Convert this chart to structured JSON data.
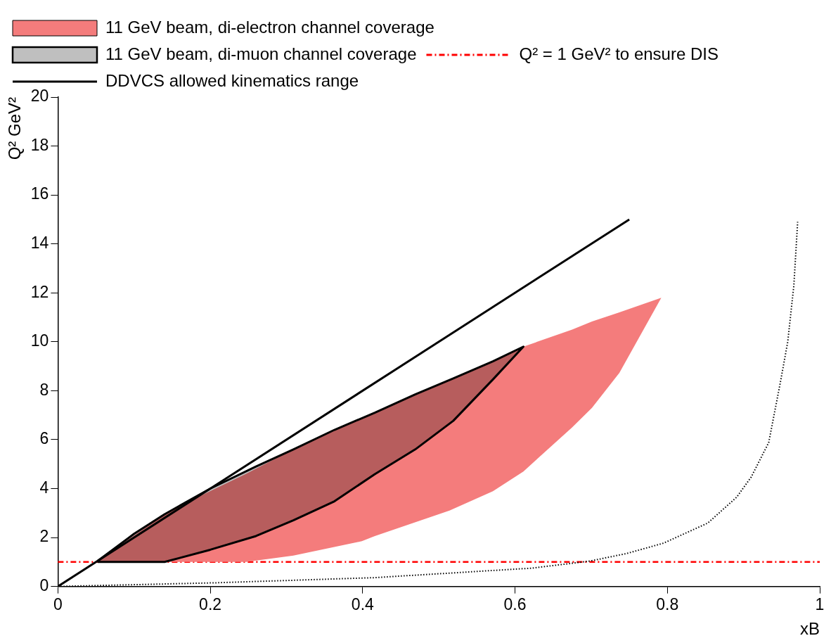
{
  "chart_data": {
    "type": "area",
    "xlabel": "xB",
    "ylabel": "Q² GeV²",
    "xlim": [
      0,
      1
    ],
    "ylim": [
      0,
      20
    ],
    "xticks": [
      0,
      0.2,
      0.4,
      0.6,
      0.8,
      1
    ],
    "yticks": [
      0,
      2,
      4,
      6,
      8,
      10,
      12,
      14,
      16,
      18,
      20
    ],
    "grid": false,
    "legend": "top",
    "series": [
      {
        "name": "11 GeV beam, di-electron channel coverage",
        "type": "area",
        "color": "#f47c7c",
        "x": [
          0.052,
          0.14,
          0.156,
          0.247,
          0.309,
          0.399,
          0.416,
          0.514,
          0.571,
          0.611,
          0.675,
          0.701,
          0.737,
          0.792,
          0.737,
          0.701,
          0.675,
          0.611,
          0.571,
          0.514,
          0.416,
          0.399,
          0.309,
          0.247,
          0.052
        ],
        "values": [
          1.04,
          2.95,
          3.24,
          4.6,
          5.6,
          6.89,
          7.1,
          8.46,
          9.2,
          9.8,
          10.5,
          10.83,
          11.2,
          11.8,
          8.73,
          7.3,
          6.5,
          4.7,
          3.89,
          3.1,
          2.06,
          1.85,
          1.26,
          1,
          1
        ]
      },
      {
        "name": "11 GeV beam, di-muon channel coverage",
        "type": "area",
        "color": "#000000",
        "line_style": "solid",
        "x": [
          0.052,
          0.1,
          0.14,
          0.2,
          0.26,
          0.309,
          0.363,
          0.416,
          0.469,
          0.519,
          0.571,
          0.611,
          0.571,
          0.519,
          0.469,
          0.416,
          0.363,
          0.309,
          0.26,
          0.2,
          0.14,
          0.052
        ],
        "values": [
          1.04,
          2.15,
          2.95,
          4.0,
          4.9,
          5.6,
          6.4,
          7.1,
          7.85,
          8.5,
          9.2,
          9.8,
          8.46,
          6.77,
          5.6,
          4.59,
          3.48,
          2.7,
          2.06,
          1.5,
          1,
          1
        ]
      },
      {
        "name": "DDVCS allowed kinematics range",
        "type": "line",
        "color": "#000000",
        "line_style": "solid",
        "x": [
          0,
          0.75
        ],
        "values": [
          0,
          15
        ]
      },
      {
        "type": "line",
        "color": "#000000",
        "line_style": "dotted",
        "x": [
          0,
          0.208,
          0.416,
          0.623,
          0.699,
          0.747,
          0.795,
          0.853,
          0.891,
          0.91,
          0.933,
          0.948,
          0.958,
          0.966,
          0.971
        ],
        "values": [
          0,
          0.15,
          0.36,
          0.75,
          1.04,
          1.35,
          1.77,
          2.59,
          3.65,
          4.47,
          5.88,
          8.29,
          10.0,
          12.3,
          14.9
        ]
      }
    ],
    "ref_lines": [
      {
        "axis": "y",
        "value": 1,
        "label": "Q² = 1 GeV² to ensure DIS",
        "color": "#ff0000",
        "line_style": "dashed"
      }
    ]
  }
}
